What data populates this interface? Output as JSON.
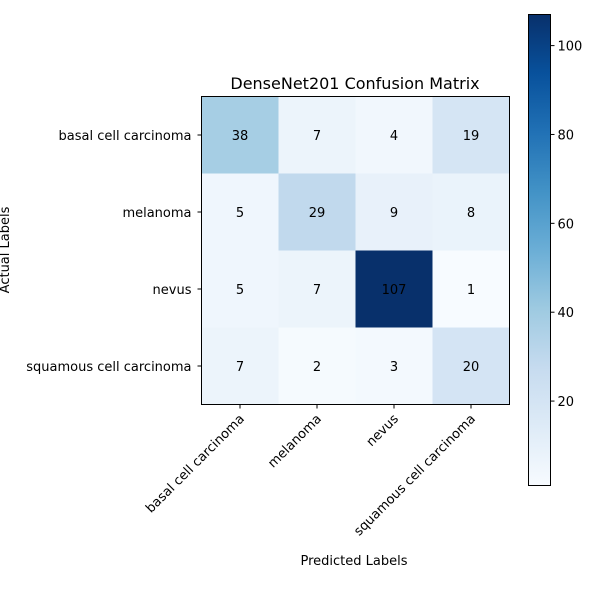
{
  "chart_data": {
    "type": "heatmap",
    "title": "DenseNet201 Confusion Matrix",
    "xlabel": "Predicted Labels",
    "ylabel": "Actual Labels",
    "x_categories": [
      "basal cell carcinoma",
      "melanoma",
      "nevus",
      "squamous cell carcinoma"
    ],
    "y_categories": [
      "basal cell carcinoma",
      "melanoma",
      "nevus",
      "squamous cell carcinoma"
    ],
    "values": [
      [
        38,
        7,
        4,
        19
      ],
      [
        5,
        29,
        9,
        8
      ],
      [
        5,
        7,
        107,
        1
      ],
      [
        7,
        2,
        3,
        20
      ]
    ],
    "colormap": "Blues",
    "colorbar": {
      "range": [
        1,
        107
      ],
      "ticks": [
        20,
        40,
        60,
        80,
        100
      ]
    },
    "colors": {
      "low": "#f7fbff",
      "high": "#08306b",
      "text": "#000000"
    }
  }
}
